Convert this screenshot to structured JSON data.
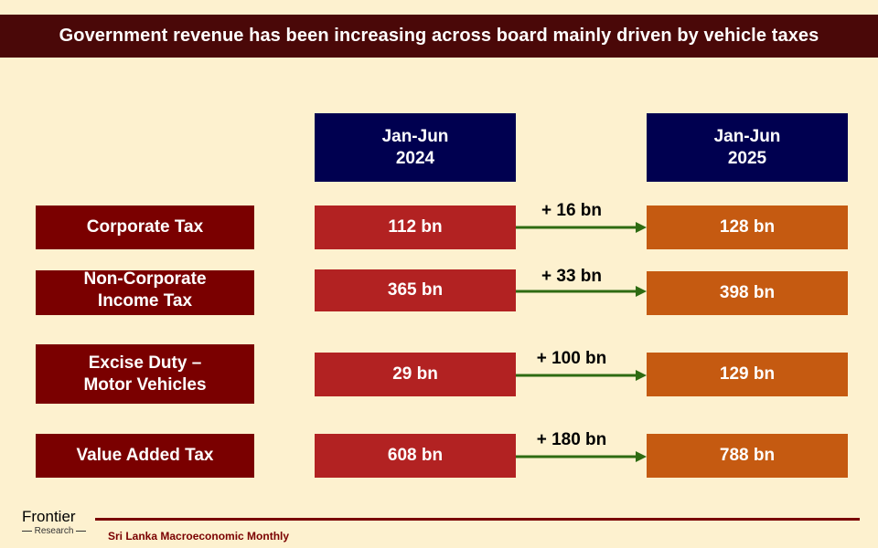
{
  "title": "Government revenue has been increasing across board mainly driven by vehicle taxes",
  "columns": {
    "left": "Jan-Jun\n2024",
    "right": "Jan-Jun\n2025"
  },
  "rows": [
    {
      "label": "Corporate Tax",
      "v2024": "112 bn",
      "v2025": "128 bn",
      "delta": "+ 16 bn"
    },
    {
      "label": "Non-Corporate\nIncome Tax",
      "v2024": "365 bn",
      "v2025": "398 bn",
      "delta": "+ 33 bn"
    },
    {
      "label": "Excise Duty –\nMotor Vehicles",
      "v2024": "29 bn",
      "v2025": "129 bn",
      "delta": "+ 100 bn"
    },
    {
      "label": "Value Added Tax",
      "v2024": "608 bn",
      "v2025": "788 bn",
      "delta": "+ 180 bn"
    }
  ],
  "footer": {
    "logo_main": "Frontier",
    "logo_sub": "Research",
    "source": "Sri Lanka Macroeconomic Monthly"
  },
  "colors": {
    "background": "#fdf1cf",
    "title_bar": "#4a0808",
    "header_box": "#000050",
    "label_box": "#7a0000",
    "value_2024": "#b22222",
    "value_2025": "#c55a11",
    "arrow": "#2e6b12"
  }
}
